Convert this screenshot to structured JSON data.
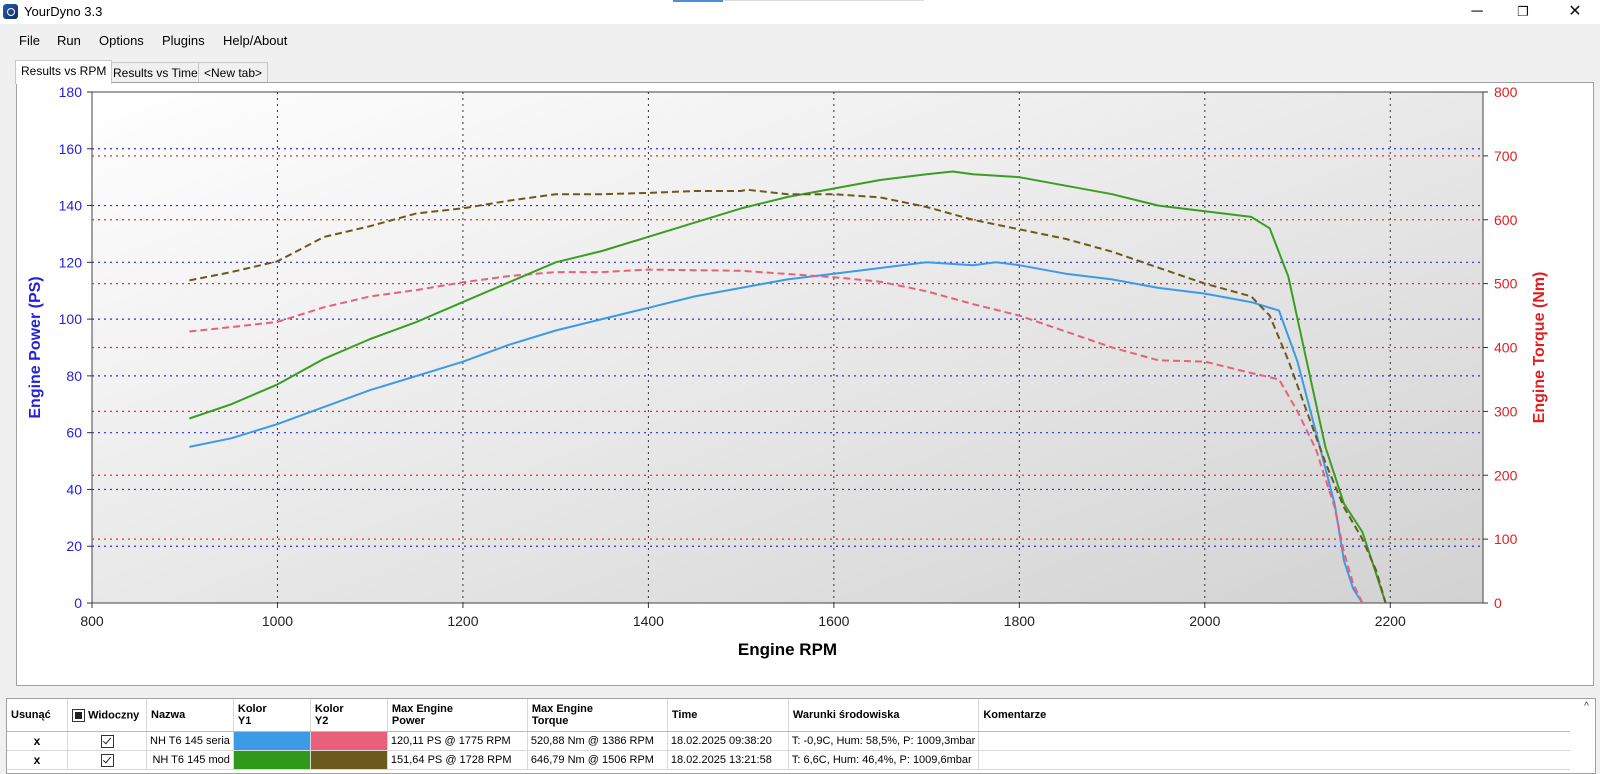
{
  "window": {
    "title": "YourDyno 3.3",
    "controls": {
      "minimize": "─",
      "maximize": "❐",
      "close": "✕"
    }
  },
  "menu": [
    "File",
    "Run",
    "Options",
    "Plugins",
    "Help/About"
  ],
  "tabs": [
    "Results vs RPM",
    "Results vs Time",
    "<New tab>"
  ],
  "chart_data": {
    "type": "line",
    "xlabel": "Engine RPM",
    "ylabel": "Engine Power (PS)",
    "y2label": "Engine Torque (Nm)",
    "xlim": [
      800,
      2300
    ],
    "ylim": [
      0,
      180
    ],
    "y2lim": [
      0,
      800
    ],
    "x_ticks": [
      800,
      1000,
      1200,
      1400,
      1600,
      1800,
      2000,
      2200
    ],
    "y_ticks": [
      0,
      20,
      40,
      60,
      80,
      100,
      120,
      140,
      160,
      180
    ],
    "y2_ticks": [
      0,
      100,
      200,
      300,
      400,
      500,
      600,
      700,
      800
    ],
    "grid": true,
    "axis_colors": {
      "y1": "#2222dd",
      "y2": "#e02020"
    },
    "series": [
      {
        "name": "NH T6 145 seria",
        "axis": "y1",
        "style": "solid",
        "color": "#3c9be6",
        "x": [
          905,
          950,
          1000,
          1050,
          1100,
          1150,
          1200,
          1250,
          1300,
          1350,
          1400,
          1450,
          1500,
          1550,
          1600,
          1650,
          1700,
          1750,
          1775,
          1800,
          1850,
          1900,
          1950,
          2000,
          2050,
          2080,
          2100,
          2120,
          2140,
          2150,
          2160,
          2170
        ],
        "y": [
          55,
          58,
          63,
          69,
          75,
          80,
          85,
          91,
          96,
          100,
          104,
          108,
          111,
          114,
          116,
          118,
          120,
          119,
          120,
          119,
          116,
          114,
          111,
          109,
          106,
          103,
          85,
          60,
          35,
          15,
          5,
          0
        ]
      },
      {
        "name": "NH T6 145 seria",
        "axis": "y2",
        "style": "dashed",
        "color": "#e8607a",
        "x": [
          905,
          950,
          1000,
          1050,
          1100,
          1150,
          1200,
          1250,
          1300,
          1350,
          1386,
          1400,
          1450,
          1500,
          1550,
          1600,
          1650,
          1700,
          1750,
          1800,
          1850,
          1900,
          1950,
          2000,
          2050,
          2080,
          2100,
          2120,
          2140,
          2150,
          2160,
          2170
        ],
        "y": [
          425,
          432,
          440,
          463,
          480,
          490,
          502,
          512,
          518,
          518,
          521,
          522,
          521,
          520,
          515,
          510,
          503,
          488,
          468,
          450,
          425,
          400,
          380,
          378,
          360,
          350,
          300,
          240,
          150,
          80,
          30,
          0
        ]
      },
      {
        "name": "NH T6 145 mod",
        "axis": "y1",
        "style": "solid",
        "color": "#3a9e23",
        "x": [
          905,
          950,
          1000,
          1050,
          1100,
          1150,
          1200,
          1250,
          1300,
          1350,
          1400,
          1450,
          1500,
          1550,
          1600,
          1650,
          1700,
          1728,
          1750,
          1800,
          1850,
          1900,
          1950,
          2000,
          2050,
          2070,
          2090,
          2110,
          2130,
          2150,
          2170,
          2185,
          2195
        ],
        "y": [
          65,
          70,
          77,
          86,
          93,
          99,
          106,
          113,
          120,
          124,
          129,
          134,
          139,
          143,
          146,
          149,
          151,
          152,
          151,
          150,
          147,
          144,
          140,
          138,
          136,
          132,
          115,
          85,
          55,
          35,
          25,
          10,
          0
        ]
      },
      {
        "name": "NH T6 145 mod",
        "axis": "y2",
        "style": "dashed",
        "color": "#6b5a1e",
        "x": [
          905,
          950,
          1000,
          1050,
          1100,
          1150,
          1200,
          1250,
          1300,
          1350,
          1400,
          1450,
          1500,
          1506,
          1550,
          1600,
          1650,
          1700,
          1750,
          1800,
          1850,
          1900,
          1950,
          2000,
          2050,
          2070,
          2090,
          2110,
          2130,
          2150,
          2170,
          2185,
          2195
        ],
        "y": [
          505,
          518,
          535,
          573,
          590,
          610,
          618,
          630,
          640,
          640,
          642,
          645,
          645,
          647,
          640,
          640,
          635,
          620,
          600,
          585,
          570,
          550,
          525,
          500,
          480,
          450,
          380,
          300,
          220,
          150,
          100,
          50,
          0
        ]
      }
    ]
  },
  "results_table": {
    "headers": {
      "delete": "Usunąć",
      "visible": "Widoczny",
      "name": "Nazwa",
      "color_y1": [
        "Kolor",
        "Y1"
      ],
      "color_y2": [
        "Kolor",
        "Y2"
      ],
      "max_power": [
        "Max Engine",
        "Power"
      ],
      "max_torque": [
        "Max Engine",
        "Torque"
      ],
      "time": "Time",
      "conditions": "Warunki środowiska",
      "comments": "Komentarze"
    },
    "rows": [
      {
        "delete": "x",
        "visible": true,
        "name": "NH T6 145 seria",
        "color_y1": "#3c9be6",
        "color_y2": "#e8607a",
        "max_power": "120,11 PS @ 1775 RPM",
        "max_torque": "520,88 Nm @ 1386 RPM",
        "time": "18.02.2025 09:38:20",
        "conditions": "T: -0,9C, Hum: 58,5%, P: 1009,3mbar",
        "comment": ""
      },
      {
        "delete": "x",
        "visible": true,
        "name": "NH T6 145 mod",
        "color_y1": "#2f9a1a",
        "color_y2": "#6b5a1e",
        "max_power": "151,64 PS @ 1728 RPM",
        "max_torque": "646,79 Nm @ 1506 RPM",
        "time": "18.02.2025 13:21:58",
        "conditions": "T: 6,6C, Hum: 46,4%, P: 1009,6mbar",
        "comment": ""
      }
    ]
  }
}
